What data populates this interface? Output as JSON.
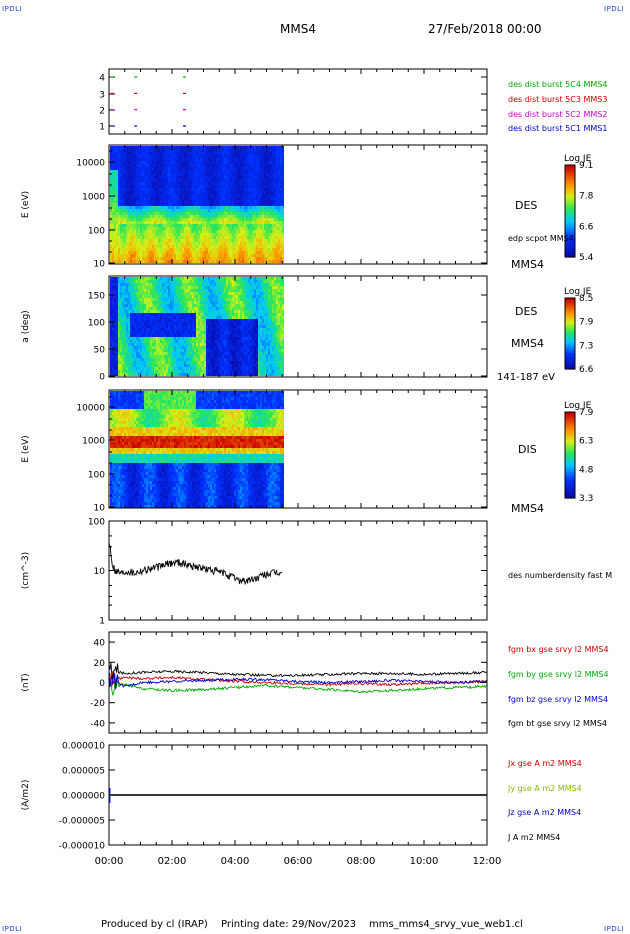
{
  "header": {
    "corner_label": "IPDLI",
    "spacecraft": "MMS4",
    "date_time": "27/Feb/2018 00:00"
  },
  "footer": {
    "produced_by": "Produced by cl (IRAP)",
    "printing_date": "Printing date: 29/Nov/2023",
    "product": "mms_mms4_srvy_vue_web1.cl"
  },
  "x_axis": {
    "ticks": [
      "00:00",
      "02:00",
      "04:00",
      "06:00",
      "08:00",
      "10:00",
      "12:00"
    ],
    "range_hours": [
      0,
      12
    ]
  },
  "colors": {
    "mms1": "#0000cc",
    "mms2": "#cc00cc",
    "mms3": "#cc0000",
    "mms4": "#00aa00",
    "bx": "#cc0000",
    "by": "#00aa00",
    "bz": "#0000cc",
    "bt": "#000000"
  },
  "chart_data": [
    {
      "type": "scatter",
      "panel": "availability",
      "ylim": [
        0.5,
        4.5
      ],
      "yticks": [
        "4",
        "3",
        "2",
        "1"
      ],
      "series": [
        {
          "name": "des dist burst 5C1 MMS1",
          "y": 1,
          "x_hours": [
            0.05,
            0.8,
            2.35
          ]
        },
        {
          "name": "des dist burst 5C2 MMS2",
          "y": 2,
          "x_hours": [
            0.05,
            0.8,
            2.35
          ]
        },
        {
          "name": "des dist burst 5C3 MMS3",
          "y": 3,
          "x_hours": [
            0.05,
            0.8,
            2.35
          ]
        },
        {
          "name": "des dist burst 5C4 MMS4",
          "y": 4,
          "x_hours": [
            0.05,
            0.8,
            2.35
          ]
        }
      ]
    },
    {
      "type": "heatmap",
      "panel": "des-energy",
      "ylabel": "E (eV)",
      "yscale": "log",
      "ylim": [
        10,
        30000
      ],
      "yticks": [
        "10000",
        "1000",
        "100",
        "10"
      ],
      "data_end_hours": 5.5,
      "colorbar": {
        "title": "Log JE",
        "ticks": [
          "9.1",
          "7.8",
          "6.6",
          "5.4"
        ]
      },
      "labels": [
        "DES",
        "edp scpot MMS4",
        "MMS4"
      ]
    },
    {
      "type": "heatmap",
      "panel": "des-pitch",
      "ylabel": "a (deg)",
      "ylim": [
        0,
        180
      ],
      "yticks": [
        "150",
        "100",
        "50",
        "0"
      ],
      "data_end_hours": 5.5,
      "colorbar": {
        "title": "Log JE",
        "ticks": [
          "8.5",
          "7.9",
          "7.3",
          "6.6"
        ]
      },
      "labels": [
        "DES",
        "MMS4",
        "141-187 eV"
      ]
    },
    {
      "type": "heatmap",
      "panel": "dis-energy",
      "ylabel": "E (eV)",
      "yscale": "log",
      "ylim": [
        10,
        30000
      ],
      "yticks": [
        "10000",
        "1000",
        "100",
        "10"
      ],
      "data_end_hours": 5.5,
      "colorbar": {
        "title": "Log JE",
        "ticks": [
          "7.9",
          "6.3",
          "4.8",
          "3.3"
        ]
      },
      "labels": [
        "DIS",
        "MMS4"
      ]
    },
    {
      "type": "line",
      "panel": "density",
      "ylabel": "(cm^-3)",
      "yscale": "log",
      "ylim": [
        1,
        100
      ],
      "yticks": [
        "100",
        "10",
        "1"
      ],
      "series": [
        {
          "name": "des numberdensity fast M",
          "x_hours": [
            0.0,
            0.1,
            0.2,
            0.4,
            0.6,
            0.8,
            1.0,
            1.3,
            1.6,
            1.9,
            2.2,
            2.5,
            2.8,
            3.0,
            3.3,
            3.6,
            3.9,
            4.1,
            4.4,
            4.7,
            5.0,
            5.3,
            5.5
          ],
          "y": [
            40,
            14,
            10,
            9,
            10,
            9,
            10,
            11,
            12,
            14,
            15,
            13,
            12,
            11,
            10,
            9,
            7.5,
            6.5,
            6.2,
            7,
            8.5,
            9,
            9
          ]
        }
      ]
    },
    {
      "type": "line",
      "panel": "fgm",
      "ylabel": "(nT)",
      "ylim": [
        -50,
        50
      ],
      "yticks": [
        "40",
        "20",
        "0",
        "-20",
        "-40"
      ],
      "series": [
        {
          "name": "fgm bx gse srvy l2 MMS4",
          "x_hours": [
            0,
            0.5,
            1,
            2,
            3,
            4,
            5,
            6,
            7,
            8,
            9,
            10,
            11,
            12
          ],
          "y": [
            2,
            5,
            4,
            5,
            3,
            1,
            0,
            -1,
            -2,
            -1,
            -2,
            -1,
            0,
            1
          ]
        },
        {
          "name": "fgm by gse srvy l2 MMS4",
          "x_hours": [
            0,
            0.5,
            1,
            2,
            3,
            4,
            5,
            6,
            7,
            8,
            9,
            10,
            11,
            12
          ],
          "y": [
            -5,
            -2,
            -6,
            -8,
            -7,
            -5,
            -3,
            -5,
            -7,
            -9,
            -8,
            -6,
            -5,
            -4
          ]
        },
        {
          "name": "fgm bz gse srvy l2 MMS4",
          "x_hours": [
            0,
            0.5,
            1,
            2,
            3,
            4,
            5,
            6,
            7,
            8,
            9,
            10,
            11,
            12
          ],
          "y": [
            4,
            -4,
            0,
            1,
            2,
            3,
            3,
            1,
            0,
            1,
            2,
            1,
            0,
            1
          ]
        },
        {
          "name": "fgm bt gse srvy l2 MMS4",
          "x_hours": [
            0,
            0.5,
            1,
            2,
            3,
            4,
            5,
            6,
            7,
            8,
            9,
            10,
            11,
            12
          ],
          "y": [
            12,
            9,
            10,
            11,
            10,
            8,
            7,
            7,
            8,
            9,
            9,
            8,
            9,
            10
          ]
        }
      ]
    },
    {
      "type": "line",
      "panel": "current",
      "ylabel": "(A/m2)",
      "ylim": [
        -1e-05,
        1e-05
      ],
      "yticks": [
        "0.000010",
        "0.000005",
        "0.000000",
        "-0.000005",
        "-0.000010"
      ],
      "series": [
        {
          "name": "Jx gse A m2 MMS4",
          "x_hours": [
            0,
            12
          ],
          "y": [
            0,
            0
          ]
        },
        {
          "name": "Jy gse A m2 MMS4",
          "x_hours": [
            0,
            12
          ],
          "y": [
            0,
            0
          ]
        },
        {
          "name": "Jz gse A m2 MMS4",
          "x_hours": [
            0,
            12
          ],
          "y": [
            0,
            0
          ]
        },
        {
          "name": "J A m2 MMS4",
          "x_hours": [
            0,
            12
          ],
          "y": [
            0,
            0
          ]
        }
      ]
    }
  ]
}
